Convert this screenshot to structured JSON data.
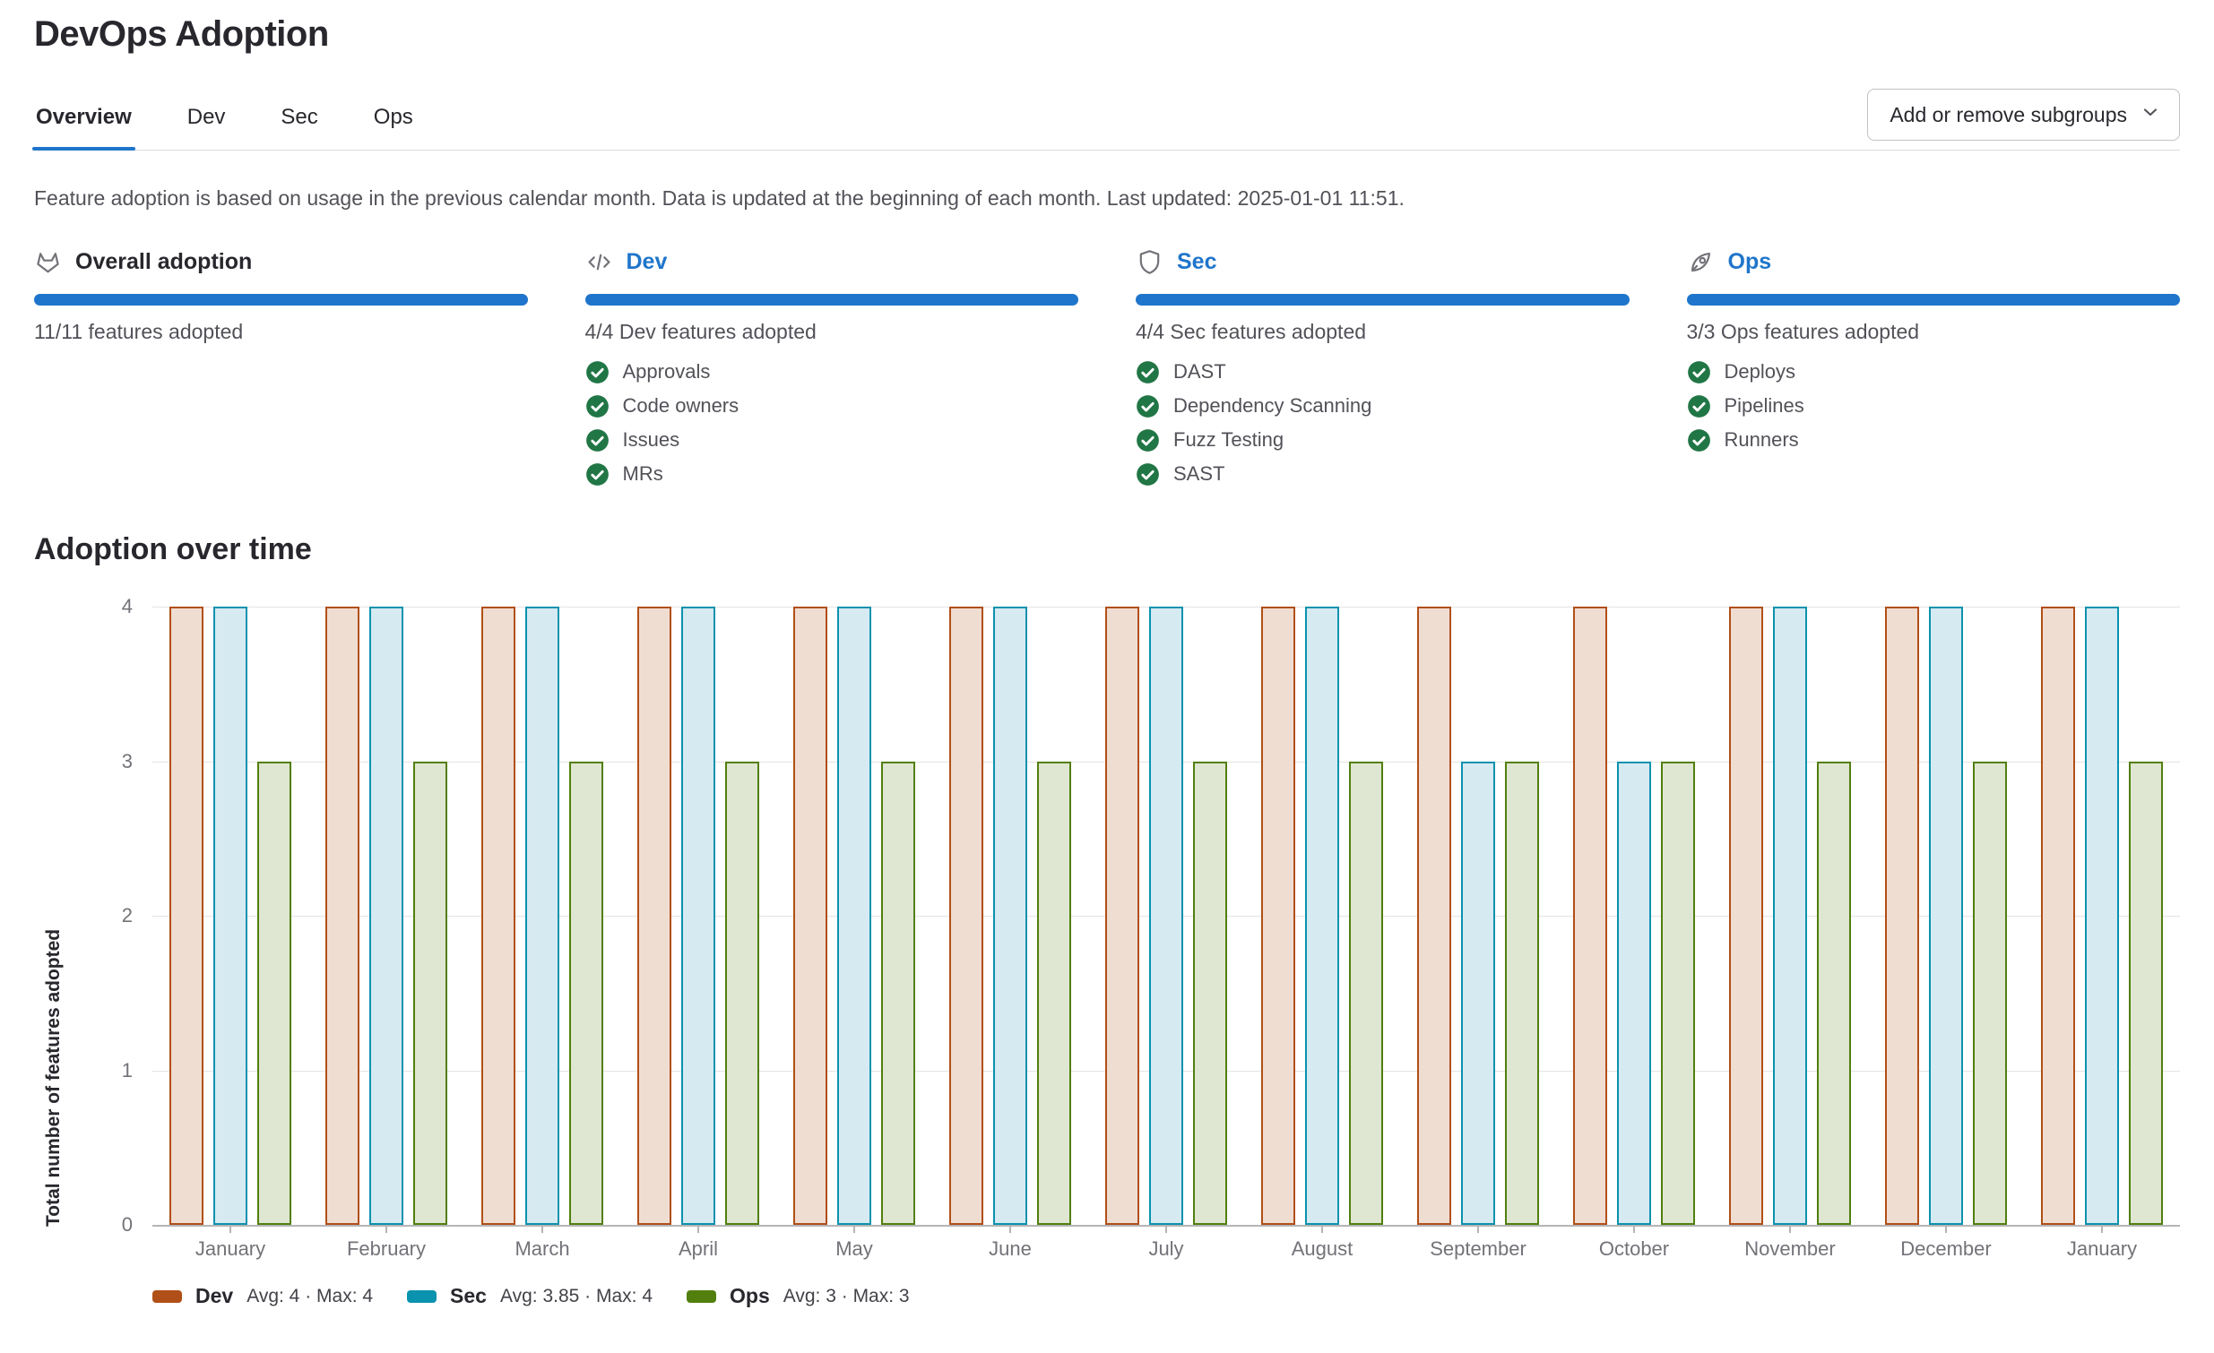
{
  "page": {
    "title": "DevOps Adoption"
  },
  "tabs": [
    {
      "label": "Overview",
      "active": true
    },
    {
      "label": "Dev",
      "active": false
    },
    {
      "label": "Sec",
      "active": false
    },
    {
      "label": "Ops",
      "active": false
    }
  ],
  "toolbar": {
    "subgroups_button_label": "Add or remove subgroups"
  },
  "note": "Feature adoption is based on usage in the previous calendar month. Data is updated at the beginning of each month. Last updated: 2025-01-01 11:51.",
  "cards": [
    {
      "icon": "tanuki-icon",
      "title": "Overall adoption",
      "link": false,
      "progress_label": "11/11 features adopted",
      "features": []
    },
    {
      "icon": "code-icon",
      "title": "Dev",
      "link": true,
      "progress_label": "4/4 Dev features adopted",
      "features": [
        "Approvals",
        "Code owners",
        "Issues",
        "MRs"
      ]
    },
    {
      "icon": "shield-icon",
      "title": "Sec",
      "link": true,
      "progress_label": "4/4 Sec features adopted",
      "features": [
        "DAST",
        "Dependency Scanning",
        "Fuzz Testing",
        "SAST"
      ]
    },
    {
      "icon": "rocket-icon",
      "title": "Ops",
      "link": true,
      "progress_label": "3/3 Ops features adopted",
      "features": [
        "Deploys",
        "Pipelines",
        "Runners"
      ]
    }
  ],
  "section": {
    "heading": "Adoption over time"
  },
  "chart_data": {
    "type": "bar",
    "title": "Adoption over time",
    "xlabel": "",
    "ylabel": "Total number of features adopted",
    "ylim": [
      0,
      4
    ],
    "yticks": [
      0,
      1,
      2,
      3,
      4
    ],
    "grid": true,
    "legend_position": "bottom",
    "categories": [
      "January",
      "February",
      "March",
      "April",
      "May",
      "June",
      "July",
      "August",
      "September",
      "October",
      "November",
      "December",
      "January"
    ],
    "series": [
      {
        "name": "Dev",
        "color": "#b14f18",
        "fill": "#f0ddd2",
        "values": [
          4,
          4,
          4,
          4,
          4,
          4,
          4,
          4,
          4,
          4,
          4,
          4,
          4
        ],
        "stats": "Avg: 4 · Max: 4"
      },
      {
        "name": "Sec",
        "color": "#0b92ae",
        "fill": "#d6eaf1",
        "values": [
          4,
          4,
          4,
          4,
          4,
          4,
          4,
          4,
          3,
          3,
          4,
          4,
          4
        ],
        "stats": "Avg: 3.85 · Max: 4"
      },
      {
        "name": "Ops",
        "color": "#527f0e",
        "fill": "#dfe6d1",
        "values": [
          3,
          3,
          3,
          3,
          3,
          3,
          3,
          3,
          3,
          3,
          3,
          3,
          3
        ],
        "stats": "Avg: 3 · Max: 3"
      }
    ]
  },
  "colors": {
    "accent_blue": "#1f75cb",
    "check_green": "#217645",
    "icon_gray": "#737278",
    "gridline": "#e3e3e4",
    "axis_line": "#b5b5b7"
  }
}
